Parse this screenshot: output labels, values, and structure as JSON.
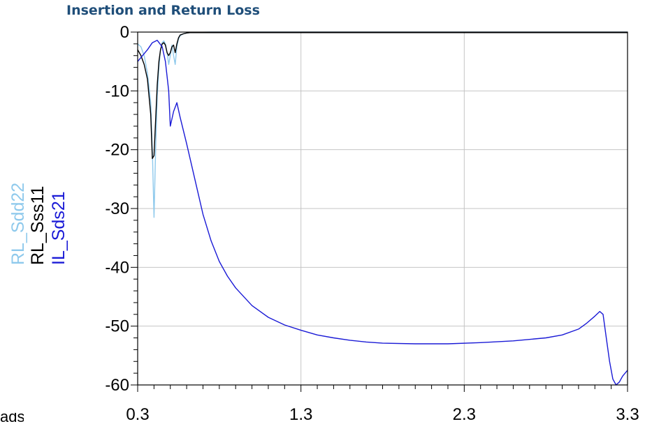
{
  "chart_data": {
    "type": "line",
    "title": "Insertion and Return Loss",
    "xlabel": "",
    "ylabel": "",
    "xlim": [
      0.3,
      3.3
    ],
    "ylim": [
      -60,
      0
    ],
    "x_ticks": [
      "0.3",
      "1.3",
      "2.3",
      "3.3"
    ],
    "y_ticks": [
      "0",
      "-10",
      "-20",
      "-30",
      "-40",
      "-50",
      "-60"
    ],
    "grid": true,
    "legend_position": "left, rotated vertical",
    "series": [
      {
        "name": "RL_Sdd22",
        "color": "#8ec9ec",
        "x": [
          0.3,
          0.32,
          0.34,
          0.36,
          0.38,
          0.39,
          0.4,
          0.41,
          0.42,
          0.43,
          0.44,
          0.45,
          0.46,
          0.47,
          0.48,
          0.49,
          0.5,
          0.51,
          0.52,
          0.53,
          0.54,
          0.55,
          0.56,
          0.58,
          0.6,
          0.62,
          0.65,
          0.7,
          0.75,
          0.8,
          1.0,
          1.5,
          2.0,
          2.5,
          3.0,
          3.3
        ],
        "y": [
          -2.0,
          -2.5,
          -4.0,
          -7.0,
          -12.0,
          -20.0,
          -31.5,
          -20.0,
          -11.0,
          -6.0,
          -3.0,
          -1.8,
          -1.5,
          -2.0,
          -3.5,
          -5.5,
          -4.0,
          -2.2,
          -4.0,
          -5.5,
          -2.5,
          -1.2,
          -0.6,
          -0.3,
          -0.15,
          -0.08,
          -0.05,
          -0.02,
          0.0,
          0.0,
          0.0,
          0.0,
          0.0,
          0.0,
          0.0,
          0.0
        ]
      },
      {
        "name": "RL_Sss11",
        "color": "#000000",
        "x": [
          0.3,
          0.32,
          0.34,
          0.36,
          0.38,
          0.39,
          0.4,
          0.41,
          0.42,
          0.43,
          0.44,
          0.45,
          0.46,
          0.47,
          0.48,
          0.49,
          0.5,
          0.51,
          0.52,
          0.53,
          0.54,
          0.55,
          0.56,
          0.58,
          0.6,
          0.62,
          0.65,
          0.7,
          0.75,
          0.8,
          1.0,
          1.5,
          2.0,
          2.5,
          3.0,
          3.3
        ],
        "y": [
          -3.0,
          -4.0,
          -5.5,
          -8.0,
          -14.0,
          -21.5,
          -21.0,
          -15.0,
          -9.0,
          -5.0,
          -3.0,
          -2.0,
          -1.8,
          -2.2,
          -3.5,
          -4.0,
          -3.5,
          -2.5,
          -2.2,
          -3.5,
          -2.0,
          -1.0,
          -0.5,
          -0.3,
          -0.15,
          -0.1,
          -0.1,
          -0.1,
          -0.1,
          -0.1,
          -0.1,
          -0.1,
          -0.1,
          -0.1,
          -0.1,
          -0.1
        ]
      },
      {
        "name": "IL_Sds21",
        "color": "#1a1ad6",
        "x": [
          0.3,
          0.33,
          0.36,
          0.39,
          0.42,
          0.45,
          0.47,
          0.49,
          0.5,
          0.52,
          0.54,
          0.56,
          0.6,
          0.65,
          0.7,
          0.75,
          0.8,
          0.85,
          0.9,
          1.0,
          1.1,
          1.2,
          1.3,
          1.4,
          1.5,
          1.6,
          1.7,
          1.8,
          2.0,
          2.2,
          2.4,
          2.6,
          2.8,
          2.9,
          3.0,
          3.05,
          3.1,
          3.13,
          3.15,
          3.17,
          3.19,
          3.21,
          3.23,
          3.25,
          3.27,
          3.3
        ],
        "y": [
          -5.0,
          -4.0,
          -3.0,
          -1.8,
          -1.4,
          -2.5,
          -5.0,
          -10.0,
          -16.0,
          -13.5,
          -12.0,
          -14.5,
          -19.0,
          -25.0,
          -31.0,
          -35.5,
          -39.0,
          -41.5,
          -43.5,
          -46.5,
          -48.5,
          -49.8,
          -50.7,
          -51.5,
          -52.0,
          -52.4,
          -52.7,
          -52.9,
          -53.0,
          -53.0,
          -52.8,
          -52.5,
          -52.0,
          -51.5,
          -50.5,
          -49.5,
          -48.3,
          -47.5,
          -48.0,
          -52.0,
          -56.0,
          -59.0,
          -60.0,
          -59.5,
          -58.5,
          -57.5
        ]
      }
    ]
  },
  "corner_fragment": "ads"
}
